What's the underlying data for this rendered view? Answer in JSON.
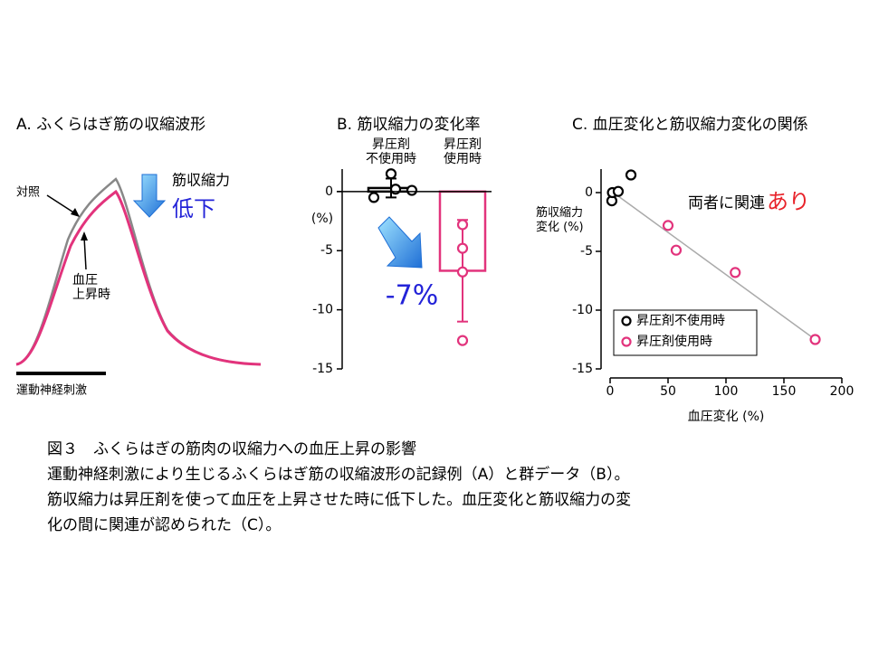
{
  "panel_a": {
    "title": "A. ふくらはぎ筋の収縮波形",
    "control_label": "対照",
    "pressor_label": "血圧\n上昇時",
    "effect_label": "筋収縮力",
    "effect_value": "低下",
    "stimulus_label": "運動神経刺激"
  },
  "chart_data": [
    {
      "type": "bar",
      "title": "B. 筋収縮力の変化率",
      "categories": [
        "昇圧剤\n不使用時",
        "昇圧剤\n使用時"
      ],
      "values": [
        0.3,
        -6.7
      ],
      "errors": [
        0.8,
        4.3
      ],
      "colors": [
        "#000000",
        "#e2337c"
      ],
      "points": [
        [
          -0.5,
          1.5,
          0.2,
          0.1
        ],
        [
          -2.8,
          -4.8,
          -6.8,
          -12.6
        ]
      ],
      "ylabel": "(%)",
      "annotation": "-7%",
      "annotation_color": "#2323d8",
      "ylim": [
        -15,
        1.9
      ],
      "yticks": [
        0,
        -5,
        -10,
        -15
      ]
    },
    {
      "type": "scatter",
      "title": "C. 血圧変化と筋収縮力変化の関係",
      "xlabel": "血圧変化 (%)",
      "ylabel": "筋収縮力\n変化 (%)",
      "series": [
        {
          "name": "昇圧剤不使用時",
          "color": "#000000",
          "x": [
            1.5,
            2,
            7,
            18
          ],
          "y": [
            -0.7,
            0,
            0.1,
            1.5
          ]
        },
        {
          "name": "昇圧剤使用時",
          "color": "#e2337c",
          "x": [
            50,
            57,
            108,
            177
          ],
          "y": [
            -2.8,
            -4.9,
            -6.8,
            -12.5
          ]
        }
      ],
      "trend": {
        "x": [
          0,
          177
        ],
        "y": [
          0.2,
          -12.5
        ],
        "color": "#aaaaaa"
      },
      "annotation": "両者に関連",
      "annotation_emphasis": "あり",
      "annotation_emphasis_color": "#e8232a",
      "xlim": [
        0,
        200
      ],
      "xticks": [
        0,
        50,
        100,
        150,
        200
      ],
      "ylim": [
        -15,
        2
      ],
      "yticks": [
        0,
        -5,
        -10,
        -15
      ]
    }
  ],
  "caption": {
    "title": "図３　ふくらはぎの筋肉の収縮力への血圧上昇の影響",
    "lines": [
      "運動神経刺激により生じるふくらはぎ筋の収縮波形の記録例（A）と群データ（B）。",
      "筋収縮力は昇圧剤を使って血圧を上昇させた時に低下した。血圧変化と筋収縮力の変",
      "化の間に関連が認められた（C）。"
    ]
  }
}
